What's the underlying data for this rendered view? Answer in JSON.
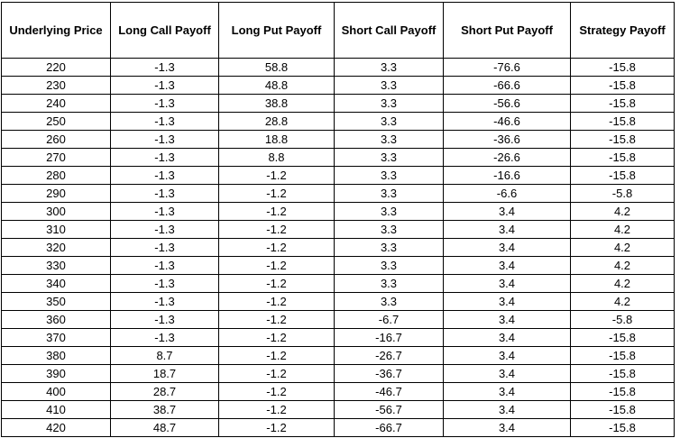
{
  "table": {
    "headers": [
      "Underlying Price",
      "Long Call Payoff",
      "Long Put Payoff",
      "Short Call Payoff",
      "Short Put Payoff",
      "Strategy Payoff"
    ],
    "rows": [
      [
        "220",
        "-1.3",
        "58.8",
        "3.3",
        "-76.6",
        "-15.8"
      ],
      [
        "230",
        "-1.3",
        "48.8",
        "3.3",
        "-66.6",
        "-15.8"
      ],
      [
        "240",
        "-1.3",
        "38.8",
        "3.3",
        "-56.6",
        "-15.8"
      ],
      [
        "250",
        "-1.3",
        "28.8",
        "3.3",
        "-46.6",
        "-15.8"
      ],
      [
        "260",
        "-1.3",
        "18.8",
        "3.3",
        "-36.6",
        "-15.8"
      ],
      [
        "270",
        "-1.3",
        "8.8",
        "3.3",
        "-26.6",
        "-15.8"
      ],
      [
        "280",
        "-1.3",
        "-1.2",
        "3.3",
        "-16.6",
        "-15.8"
      ],
      [
        "290",
        "-1.3",
        "-1.2",
        "3.3",
        "-6.6",
        "-5.8"
      ],
      [
        "300",
        "-1.3",
        "-1.2",
        "3.3",
        "3.4",
        "4.2"
      ],
      [
        "310",
        "-1.3",
        "-1.2",
        "3.3",
        "3.4",
        "4.2"
      ],
      [
        "320",
        "-1.3",
        "-1.2",
        "3.3",
        "3.4",
        "4.2"
      ],
      [
        "330",
        "-1.3",
        "-1.2",
        "3.3",
        "3.4",
        "4.2"
      ],
      [
        "340",
        "-1.3",
        "-1.2",
        "3.3",
        "3.4",
        "4.2"
      ],
      [
        "350",
        "-1.3",
        "-1.2",
        "3.3",
        "3.4",
        "4.2"
      ],
      [
        "360",
        "-1.3",
        "-1.2",
        "-6.7",
        "3.4",
        "-5.8"
      ],
      [
        "370",
        "-1.3",
        "-1.2",
        "-16.7",
        "3.4",
        "-15.8"
      ],
      [
        "380",
        "8.7",
        "-1.2",
        "-26.7",
        "3.4",
        "-15.8"
      ],
      [
        "390",
        "18.7",
        "-1.2",
        "-36.7",
        "3.4",
        "-15.8"
      ],
      [
        "400",
        "28.7",
        "-1.2",
        "-46.7",
        "3.4",
        "-15.8"
      ],
      [
        "410",
        "38.7",
        "-1.2",
        "-56.7",
        "3.4",
        "-15.8"
      ],
      [
        "420",
        "48.7",
        "-1.2",
        "-66.7",
        "3.4",
        "-15.8"
      ]
    ]
  }
}
